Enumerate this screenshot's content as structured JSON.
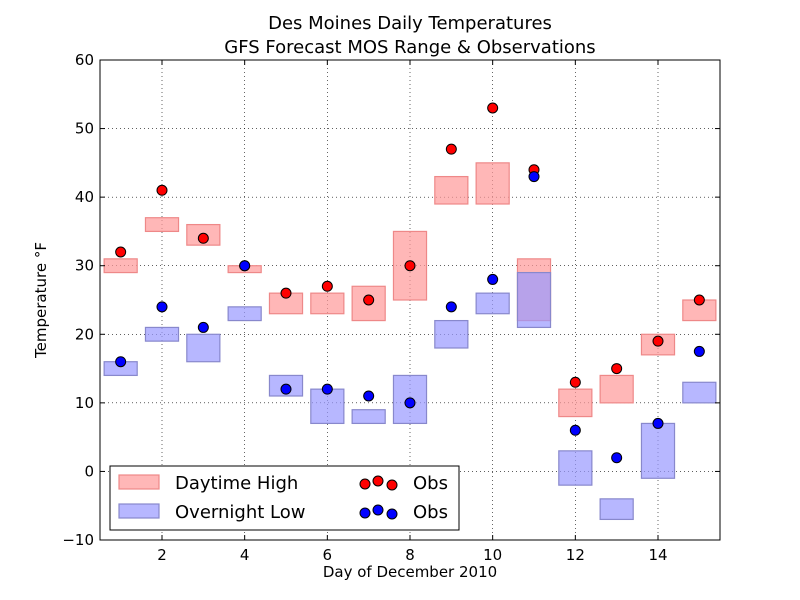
{
  "chart_data": {
    "type": "bar",
    "title": "Des Moines Daily Temperatures",
    "subtitle": "GFS Forecast MOS Range & Observations",
    "xlabel": "Day of December 2010",
    "ylabel": "Temperature °F",
    "xlim": [
      0.5,
      15.5
    ],
    "ylim": [
      -10,
      60
    ],
    "xticks": [
      2,
      4,
      6,
      8,
      10,
      12,
      14
    ],
    "yticks": [
      -10,
      0,
      10,
      20,
      30,
      40,
      50,
      60
    ],
    "grid": true,
    "legend_position": "lower-left",
    "series": [
      {
        "name": "Daytime High",
        "kind": "range",
        "color": "#ff9999",
        "edge_color": "#ee8888",
        "ranges": [
          {
            "day": 1,
            "low": 29,
            "high": 31
          },
          {
            "day": 2,
            "low": 35,
            "high": 37
          },
          {
            "day": 3,
            "low": 33,
            "high": 36
          },
          {
            "day": 4,
            "low": 29,
            "high": 30
          },
          {
            "day": 5,
            "low": 23,
            "high": 26
          },
          {
            "day": 6,
            "low": 23,
            "high": 26
          },
          {
            "day": 7,
            "low": 22,
            "high": 27
          },
          {
            "day": 8,
            "low": 25,
            "high": 35
          },
          {
            "day": 9,
            "low": 39,
            "high": 43
          },
          {
            "day": 10,
            "low": 39,
            "high": 45
          },
          {
            "day": 11,
            "low": 22,
            "high": 31
          },
          {
            "day": 12,
            "low": 8,
            "high": 12
          },
          {
            "day": 13,
            "low": 10,
            "high": 14
          },
          {
            "day": 14,
            "low": 17,
            "high": 20
          },
          {
            "day": 15,
            "low": 22,
            "high": 25
          }
        ]
      },
      {
        "name": "Overnight Low",
        "kind": "range",
        "color": "#9999ff",
        "edge_color": "#8888cc",
        "ranges": [
          {
            "day": 1,
            "low": 14,
            "high": 16
          },
          {
            "day": 2,
            "low": 19,
            "high": 21
          },
          {
            "day": 3,
            "low": 16,
            "high": 20
          },
          {
            "day": 4,
            "low": 22,
            "high": 24
          },
          {
            "day": 5,
            "low": 11,
            "high": 14
          },
          {
            "day": 6,
            "low": 7,
            "high": 12
          },
          {
            "day": 7,
            "low": 7,
            "high": 9
          },
          {
            "day": 8,
            "low": 7,
            "high": 14
          },
          {
            "day": 9,
            "low": 18,
            "high": 22
          },
          {
            "day": 10,
            "low": 23,
            "high": 26
          },
          {
            "day": 11,
            "low": 21,
            "high": 29
          },
          {
            "day": 12,
            "low": -2,
            "high": 3
          },
          {
            "day": 13,
            "low": -7,
            "high": -4
          },
          {
            "day": 14,
            "low": -1,
            "high": 7
          },
          {
            "day": 15,
            "low": 10,
            "high": 13
          }
        ]
      },
      {
        "name": "Obs",
        "kind": "points",
        "color": "#ff0000",
        "x": [
          1,
          2,
          3,
          4,
          5,
          6,
          7,
          8,
          9,
          10,
          11,
          12,
          13,
          14,
          15
        ],
        "y": [
          32,
          41,
          34,
          30,
          26,
          27,
          25,
          30,
          47,
          53,
          44,
          13,
          15,
          19,
          25
        ]
      },
      {
        "name": "Obs",
        "kind": "points",
        "color": "#0000ff",
        "x": [
          1,
          2,
          3,
          4,
          5,
          6,
          7,
          8,
          9,
          10,
          11,
          12,
          13,
          14,
          15
        ],
        "y": [
          16,
          24,
          21,
          30,
          12,
          12,
          11,
          10,
          24,
          28,
          43,
          6,
          2,
          7,
          17.5
        ]
      }
    ]
  }
}
